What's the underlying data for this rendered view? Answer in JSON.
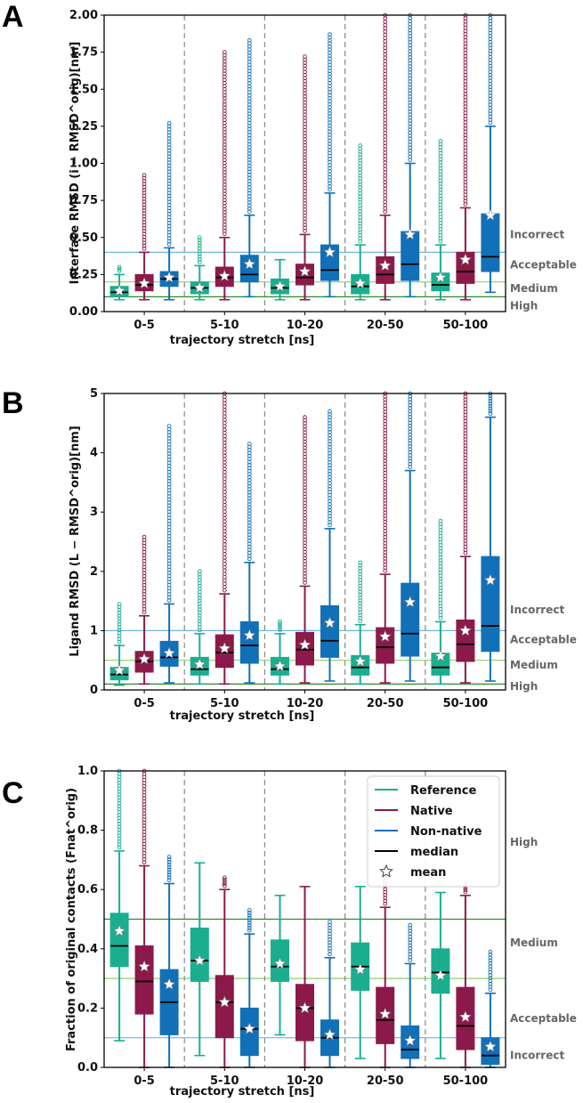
{
  "colors": {
    "reference": "#1aae8f",
    "native": "#8b1a4a",
    "nonnative": "#1270b8",
    "median": "#000000",
    "high_line": "#2e8b2e",
    "mid_line": "#8fcf6a",
    "low_line": "#6fb6e0"
  },
  "legend": {
    "items": [
      {
        "label": "Reference",
        "kind": "line",
        "color": "#1aae8f"
      },
      {
        "label": "Native",
        "kind": "line",
        "color": "#8b1a4a"
      },
      {
        "label": "Non-native",
        "kind": "line",
        "color": "#1270b8"
      },
      {
        "label": "median",
        "kind": "line",
        "color": "#000000"
      },
      {
        "label": "mean",
        "kind": "star",
        "color": "#ffffff"
      }
    ]
  },
  "chart_data": [
    {
      "panel_label": "A",
      "type": "box",
      "xlabel": "trajectory stretch [ns]",
      "ylabel": "Interface RMSD (i − RMSD^orig)[nm]",
      "ylim": [
        0,
        2.0
      ],
      "yticks": [
        "0.00",
        "0.25",
        "0.50",
        "0.75",
        "1.00",
        "1.25",
        "1.50",
        "1.75",
        "2.00"
      ],
      "categories": [
        "0-5",
        "5-10",
        "10-20",
        "20-50",
        "50-100"
      ],
      "thresholds": [
        {
          "label": "Incorrect",
          "value": 0.4
        },
        {
          "label": "Acceptable",
          "value": 0.2
        },
        {
          "label": "Medium",
          "value": 0.1
        },
        {
          "label": "High",
          "value": 0
        }
      ],
      "series": [
        {
          "name": "Reference",
          "q1": [
            0.1,
            0.12,
            0.12,
            0.12,
            0.14
          ],
          "median": [
            0.13,
            0.16,
            0.16,
            0.17,
            0.18
          ],
          "q3": [
            0.17,
            0.2,
            0.22,
            0.25,
            0.26
          ],
          "whisker_low": [
            0.08,
            0.08,
            0.08,
            0.08,
            0.08
          ],
          "whisker_high": [
            0.25,
            0.31,
            0.35,
            0.45,
            0.45
          ],
          "mean": [
            0.14,
            0.16,
            0.17,
            0.19,
            0.23
          ],
          "outlier_max": [
            0.3,
            0.5,
            0.35,
            1.12,
            1.15
          ]
        },
        {
          "name": "Native",
          "q1": [
            0.14,
            0.17,
            0.18,
            0.19,
            0.19
          ],
          "median": [
            0.18,
            0.23,
            0.23,
            0.25,
            0.27
          ],
          "q3": [
            0.25,
            0.3,
            0.32,
            0.37,
            0.4
          ],
          "whisker_low": [
            0.08,
            0.08,
            0.08,
            0.08,
            0.08
          ],
          "whisker_high": [
            0.4,
            0.5,
            0.52,
            0.65,
            0.7
          ],
          "mean": [
            0.19,
            0.24,
            0.27,
            0.31,
            0.35
          ],
          "outlier_max": [
            0.92,
            1.75,
            1.72,
            2.0,
            2.0
          ]
        },
        {
          "name": "Non-native",
          "q1": [
            0.17,
            0.2,
            0.21,
            0.21,
            0.27
          ],
          "median": [
            0.22,
            0.25,
            0.28,
            0.32,
            0.37
          ],
          "q3": [
            0.27,
            0.38,
            0.45,
            0.54,
            0.66
          ],
          "whisker_low": [
            0.08,
            0.1,
            0.1,
            0.1,
            0.13
          ],
          "whisker_high": [
            0.43,
            0.65,
            0.8,
            1.0,
            1.25
          ],
          "mean": [
            0.23,
            0.32,
            0.4,
            0.52,
            0.65
          ],
          "outlier_max": [
            1.27,
            1.83,
            1.87,
            2.0,
            2.0
          ]
        }
      ]
    },
    {
      "panel_label": "B",
      "type": "box",
      "xlabel": "trajectory stretch [ns]",
      "ylabel": "Ligand RMSD (L − RMSD^orig)[nm]",
      "ylim": [
        0,
        5
      ],
      "yticks": [
        "0",
        "1",
        "2",
        "3",
        "4",
        "5"
      ],
      "categories": [
        "0-5",
        "5-10",
        "10-20",
        "20-50",
        "50-100"
      ],
      "thresholds": [
        {
          "label": "Incorrect",
          "value": 1.0
        },
        {
          "label": "Acceptable",
          "value": 0.5
        },
        {
          "label": "Medium",
          "value": 0.1
        },
        {
          "label": "High",
          "value": 0
        }
      ],
      "series": [
        {
          "name": "Reference",
          "q1": [
            0.17,
            0.25,
            0.25,
            0.25,
            0.25
          ],
          "median": [
            0.26,
            0.35,
            0.35,
            0.38,
            0.38
          ],
          "q3": [
            0.38,
            0.55,
            0.55,
            0.58,
            0.62
          ],
          "whisker_low": [
            0.08,
            0.1,
            0.1,
            0.1,
            0.1
          ],
          "whisker_high": [
            0.75,
            0.95,
            0.95,
            1.1,
            1.15
          ],
          "mean": [
            0.33,
            0.43,
            0.4,
            0.48,
            0.57
          ],
          "outlier_max": [
            1.45,
            2.0,
            1.15,
            2.15,
            2.85
          ]
        },
        {
          "name": "Native",
          "q1": [
            0.3,
            0.38,
            0.42,
            0.45,
            0.48
          ],
          "median": [
            0.48,
            0.63,
            0.68,
            0.72,
            0.77
          ],
          "q3": [
            0.65,
            0.93,
            0.97,
            1.05,
            1.18
          ],
          "whisker_low": [
            0.1,
            0.1,
            0.12,
            0.12,
            0.12
          ],
          "whisker_high": [
            1.25,
            1.62,
            1.75,
            1.95,
            2.25
          ],
          "mean": [
            0.52,
            0.7,
            0.76,
            0.9,
            1.0
          ],
          "outlier_max": [
            2.58,
            5.0,
            4.6,
            5.0,
            5.0
          ]
        },
        {
          "name": "Non-native",
          "q1": [
            0.4,
            0.45,
            0.55,
            0.57,
            0.65
          ],
          "median": [
            0.55,
            0.75,
            0.83,
            0.95,
            1.08
          ],
          "q3": [
            0.82,
            1.15,
            1.42,
            1.8,
            2.25
          ],
          "whisker_low": [
            0.12,
            0.12,
            0.15,
            0.15,
            0.15
          ],
          "whisker_high": [
            1.45,
            2.15,
            2.72,
            3.7,
            4.6
          ],
          "mean": [
            0.62,
            0.92,
            1.13,
            1.48,
            1.85
          ],
          "outlier_max": [
            4.45,
            4.15,
            4.7,
            5.0,
            5.0
          ]
        }
      ]
    },
    {
      "panel_label": "C",
      "type": "box",
      "xlabel": "trajectory stretch [ns]",
      "ylabel": "Fraction of original contacts (Fnat^orig)",
      "ylim": [
        0,
        1.0
      ],
      "yticks": [
        "0.0",
        "0.2",
        "0.4",
        "0.6",
        "0.8",
        "1.0"
      ],
      "categories": [
        "0-5",
        "5-10",
        "10-20",
        "20-50",
        "50-100"
      ],
      "thresholds": [
        {
          "label": "High",
          "value": 0.5
        },
        {
          "label": "Medium",
          "value": 0.3
        },
        {
          "label": "Acceptable",
          "value": 0.1
        },
        {
          "label": "Incorrect",
          "value": 0
        }
      ],
      "series": [
        {
          "name": "Reference",
          "q1": [
            0.34,
            0.29,
            0.29,
            0.26,
            0.25
          ],
          "median": [
            0.41,
            0.36,
            0.34,
            0.34,
            0.32
          ],
          "q3": [
            0.52,
            0.47,
            0.43,
            0.42,
            0.4
          ],
          "whisker_low": [
            0.09,
            0.04,
            0.11,
            0.03,
            0.03
          ],
          "whisker_high": [
            0.73,
            0.69,
            0.58,
            0.61,
            0.59
          ],
          "mean": [
            0.46,
            0.36,
            0.35,
            0.33,
            0.31
          ],
          "outlier_max": [
            1.0,
            0.69,
            0.58,
            0.61,
            0.59
          ]
        },
        {
          "name": "Native",
          "q1": [
            0.18,
            0.1,
            0.09,
            0.08,
            0.06
          ],
          "median": [
            0.29,
            0.22,
            0.2,
            0.16,
            0.14
          ],
          "q3": [
            0.41,
            0.31,
            0.28,
            0.27,
            0.27
          ],
          "whisker_low": [
            0.0,
            0.0,
            0.0,
            0.0,
            0.0
          ],
          "whisker_high": [
            0.68,
            0.6,
            0.61,
            0.54,
            0.58
          ],
          "mean": [
            0.34,
            0.22,
            0.2,
            0.18,
            0.17
          ],
          "outlier_max": [
            1.0,
            0.64,
            0.61,
            0.68,
            0.62
          ]
        },
        {
          "name": "Non-native",
          "q1": [
            0.11,
            0.04,
            0.04,
            0.03,
            0.01
          ],
          "median": [
            0.22,
            0.13,
            0.1,
            0.06,
            0.04
          ],
          "q3": [
            0.33,
            0.2,
            0.16,
            0.14,
            0.1
          ],
          "whisker_low": [
            0.0,
            0.0,
            0.0,
            0.0,
            0.0
          ],
          "whisker_high": [
            0.62,
            0.45,
            0.37,
            0.35,
            0.25
          ],
          "mean": [
            0.28,
            0.13,
            0.11,
            0.09,
            0.07
          ],
          "outlier_max": [
            0.71,
            0.53,
            0.49,
            0.48,
            0.39
          ]
        }
      ]
    }
  ]
}
